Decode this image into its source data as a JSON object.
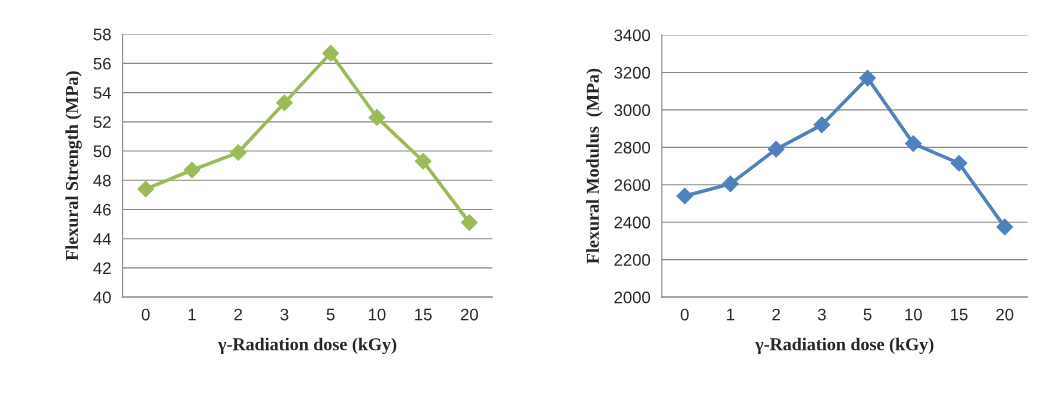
{
  "chart_data": [
    {
      "type": "line",
      "xlabel": "γ-Radiation dose (kGy)",
      "ylabel": "Flexural Strength (MPa)",
      "categories": [
        "0",
        "1",
        "2",
        "3",
        "5",
        "10",
        "15",
        "20"
      ],
      "series": [
        {
          "color": "#9bbb59",
          "values": [
            47.4,
            48.7,
            49.9,
            53.3,
            56.7,
            52.3,
            49.3,
            45.1
          ]
        }
      ],
      "ylim": [
        40,
        58
      ],
      "yticks": [
        40,
        42,
        44,
        46,
        48,
        50,
        52,
        54,
        56,
        58
      ],
      "grid": "y",
      "marker": "diamond",
      "line_style": "solid"
    },
    {
      "type": "line",
      "xlabel": "γ-Radiation dose (kGy)",
      "ylabel": "Flexural Modulus  (MPa)",
      "categories": [
        "0",
        "1",
        "2",
        "3",
        "5",
        "10",
        "15",
        "20"
      ],
      "series": [
        {
          "color": "#4f81bd",
          "values": [
            2540,
            2605,
            2790,
            2920,
            3170,
            2820,
            2715,
            2375
          ]
        }
      ],
      "ylim": [
        2000,
        3400
      ],
      "yticks": [
        2000,
        2200,
        2400,
        2600,
        2800,
        3000,
        3200,
        3400
      ],
      "grid": "y",
      "marker": "diamond",
      "line_style": "solid"
    }
  ]
}
